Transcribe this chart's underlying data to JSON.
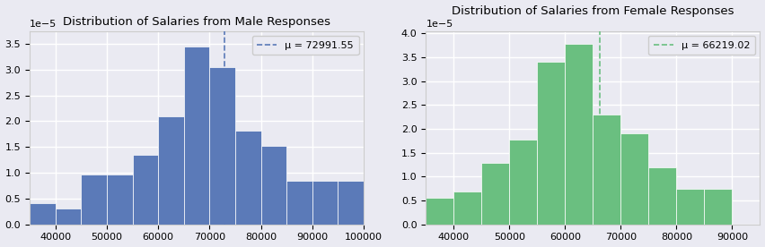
{
  "male": {
    "title": "Distribution of Salaries from Male Responses",
    "mean": 72991.55,
    "mean_label": "μ = 72991.55",
    "color": "#5b7ab8",
    "bins": [
      35000,
      40000,
      45000,
      50000,
      55000,
      60000,
      65000,
      70000,
      75000,
      80000,
      85000,
      90000,
      95000,
      100000
    ],
    "densities": [
      4.2e-06,
      3e-06,
      9.7e-06,
      9.7e-06,
      1.35e-05,
      2.1e-05,
      3.45e-05,
      3.05e-05,
      1.82e-05,
      1.52e-05,
      8.5e-06,
      8.5e-06,
      8.5e-06
    ],
    "xlim": [
      35000,
      100000
    ],
    "ylim": [
      0,
      3.75e-05
    ],
    "yticks": [
      0.0,
      5e-06,
      1e-05,
      1.5e-05,
      2e-05,
      2.5e-05,
      3e-05,
      3.5e-05
    ],
    "xticks": [
      40000,
      50000,
      60000,
      70000,
      80000,
      90000,
      100000
    ]
  },
  "female": {
    "title": "Distribution of Salaries from Female Responses",
    "mean": 66219.02,
    "mean_label": "μ = 66219.02",
    "color": "#6abf80",
    "bins": [
      35000,
      40000,
      45000,
      50000,
      55000,
      60000,
      65000,
      70000,
      75000,
      80000,
      85000,
      90000,
      95000
    ],
    "densities": [
      5.5e-06,
      6.8e-06,
      1.28e-05,
      1.78e-05,
      3.4e-05,
      3.78e-05,
      2.3e-05,
      1.9e-05,
      1.2e-05,
      7.5e-06,
      7.5e-06,
      0.0
    ],
    "xlim": [
      35000,
      95000
    ],
    "ylim": [
      0,
      4.05e-05
    ],
    "yticks": [
      0.0,
      5e-06,
      1e-05,
      1.5e-05,
      2e-05,
      2.5e-05,
      3e-05,
      3.5e-05
    ],
    "xticks": [
      40000,
      50000,
      60000,
      70000,
      80000,
      90000
    ]
  },
  "background_color": "#eaeaf2",
  "grid_color": "white",
  "figsize": [
    8.52,
    2.76
  ],
  "dpi": 100
}
